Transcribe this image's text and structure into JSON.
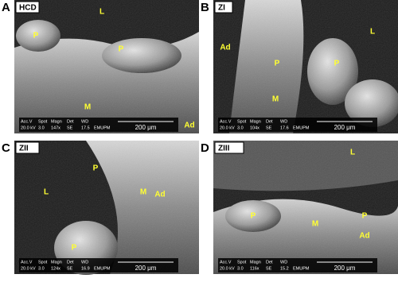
{
  "panels": [
    {
      "letter": "A",
      "tag": "HCD",
      "labels": [
        "L",
        "P",
        "P",
        "M",
        "Ad"
      ],
      "info": {
        "headers": [
          "Acc.V",
          "Spot",
          "Magn",
          "Det",
          "WD"
        ],
        "values": [
          "20.0 kV",
          "3.0",
          "147x",
          "SE",
          "17.5"
        ],
        "lab": "EMUPM",
        "scale": "200 μm"
      }
    },
    {
      "letter": "B",
      "tag": "ZI",
      "labels": [
        "Ad",
        "L",
        "P",
        "P",
        "M"
      ],
      "info": {
        "headers": [
          "Acc.V",
          "Spot",
          "Magn",
          "Det",
          "WD"
        ],
        "values": [
          "20.0 kV",
          "3.0",
          "104x",
          "SE",
          "17.6"
        ],
        "lab": "EMUPM",
        "scale": "200 μm"
      }
    },
    {
      "letter": "C",
      "tag": "ZII",
      "labels": [
        "P",
        "L",
        "M",
        "Ad",
        "P"
      ],
      "info": {
        "headers": [
          "Acc.V",
          "Spot",
          "Magn",
          "Det",
          "WD"
        ],
        "values": [
          "20.0 kV",
          "3.0",
          "124x",
          "SE",
          "16.9"
        ],
        "lab": "EMUPM",
        "scale": "200 μm"
      }
    },
    {
      "letter": "D",
      "tag": "ZIII",
      "labels": [
        "L",
        "P",
        "P",
        "M",
        "Ad"
      ],
      "info": {
        "headers": [
          "Acc.V",
          "Spot",
          "Magn",
          "Det",
          "WD"
        ],
        "values": [
          "20.0 kV",
          "3.0",
          "116x",
          "SE",
          "15.2"
        ],
        "lab": "EMUPM",
        "scale": "200 μm"
      }
    }
  ]
}
